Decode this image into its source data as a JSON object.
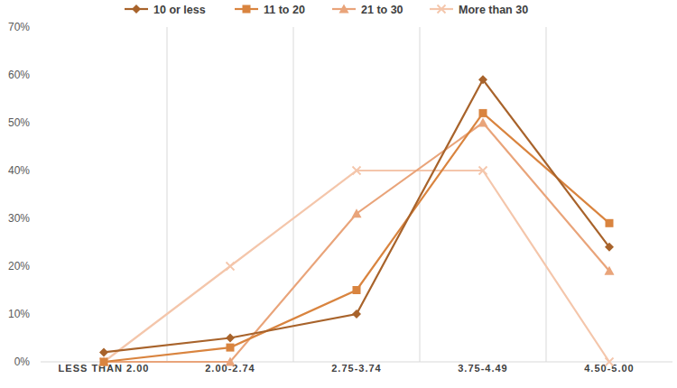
{
  "chart_data": {
    "type": "line",
    "categories": [
      "LESS THAN 2.00",
      "2.00-2.74",
      "2.75-3.74",
      "3.75-4.49",
      "4.50-5.00"
    ],
    "series": [
      {
        "name": "10 or less",
        "color": "#a8632b",
        "marker": "diamond",
        "values": [
          2,
          5,
          10,
          59,
          24
        ]
      },
      {
        "name": "11 to 20",
        "color": "#d9843f",
        "marker": "square",
        "values": [
          0,
          3,
          15,
          52,
          29
        ]
      },
      {
        "name": "21 to 30",
        "color": "#e9a47a",
        "marker": "triangle",
        "values": [
          0,
          0,
          31,
          50,
          19
        ]
      },
      {
        "name": "More than 30",
        "color": "#f4c6ab",
        "marker": "x",
        "values": [
          0,
          20,
          40,
          40,
          0
        ]
      }
    ],
    "ylim": [
      0,
      70
    ],
    "yticks": [
      {
        "value": 0,
        "label": "0%"
      },
      {
        "value": 10,
        "label": "10%"
      },
      {
        "value": 20,
        "label": "20%"
      },
      {
        "value": 30,
        "label": "30%"
      },
      {
        "value": 40,
        "label": "40%"
      },
      {
        "value": 50,
        "label": "50%"
      },
      {
        "value": 60,
        "label": "60%"
      },
      {
        "value": 70,
        "label": "70%"
      }
    ],
    "grid": true,
    "legend": "top"
  }
}
